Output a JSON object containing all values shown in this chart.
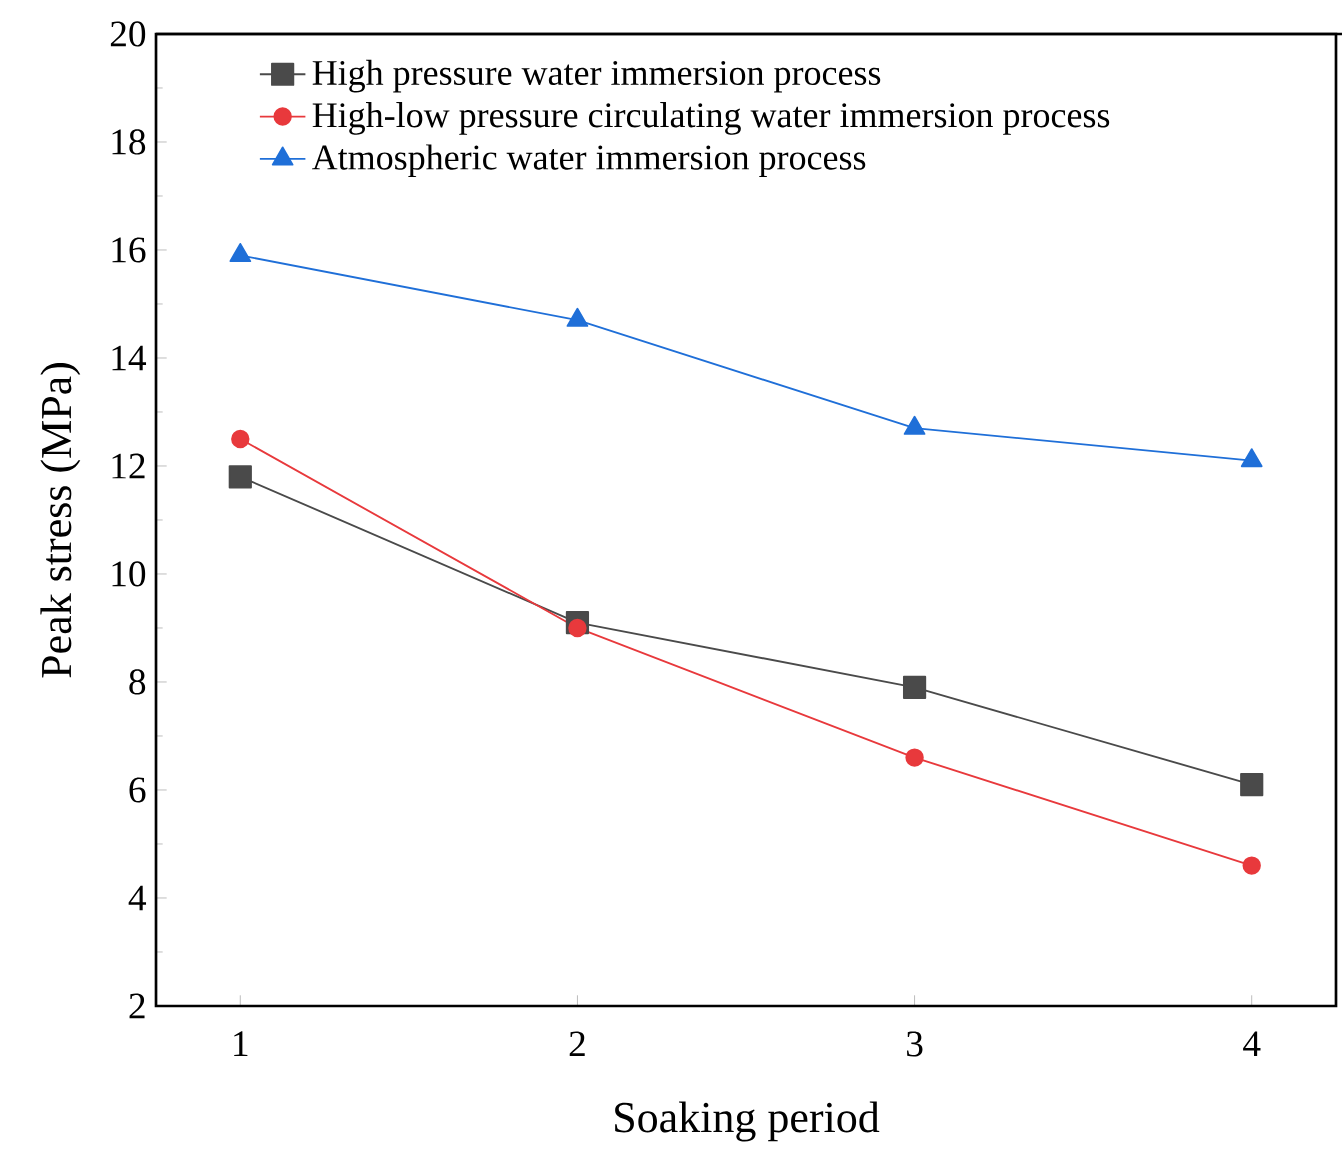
{
  "chart_data": {
    "type": "line",
    "xlabel": "Soaking period",
    "ylabel": "Peak stress (MPa)",
    "x": [
      1,
      2,
      3,
      4
    ],
    "xlim": [
      0.75,
      4.25
    ],
    "xticks": [
      1,
      2,
      3,
      4
    ],
    "ylim": [
      2,
      20
    ],
    "yticks": [
      2,
      4,
      6,
      8,
      10,
      12,
      14,
      16,
      18,
      20
    ],
    "legend": "top left",
    "grid": false,
    "series": [
      {
        "name": "High pressure water immersion process",
        "color": "#4a4a4a",
        "marker": "square",
        "values": [
          11.8,
          9.1,
          7.9,
          6.1
        ]
      },
      {
        "name": "High-low pressure circulating water immersion process",
        "color": "#e8393c",
        "marker": "circle",
        "values": [
          12.5,
          9.0,
          6.6,
          4.6
        ]
      },
      {
        "name": "Atmospheric water immersion process",
        "color": "#1f6fd8",
        "marker": "triangle",
        "values": [
          15.9,
          14.7,
          12.7,
          12.1
        ]
      }
    ]
  }
}
